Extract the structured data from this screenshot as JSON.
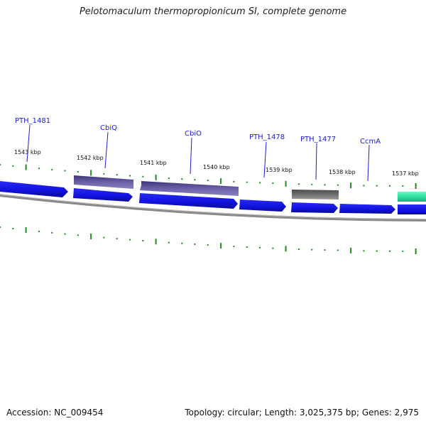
{
  "title": "Pelotomaculum thermopropionicum SI, complete genome",
  "footer": {
    "accession": "Accession: NC_009454",
    "summary": "Topology: circular; Length: 3,025,375 bp; Genes: 2,975"
  },
  "colors": {
    "strand_blue": "#1414e6",
    "strand_purple": "#5a4f94",
    "strand_gray": "#6a6a6a",
    "strand_teal": "#2fe0a0",
    "tick_green": "#1e8c1e",
    "label_blue": "#1a1ad6"
  },
  "scale_labels": [
    {
      "id": "1543",
      "text": "1543 kbp"
    },
    {
      "id": "1542",
      "text": "1542 kbp"
    },
    {
      "id": "1541",
      "text": "1541 kbp"
    },
    {
      "id": "1540",
      "text": "1540 kbp"
    },
    {
      "id": "1539",
      "text": "1539 kbp"
    },
    {
      "id": "1538",
      "text": "1538 kbp"
    },
    {
      "id": "1537",
      "text": "1537 kbp"
    }
  ],
  "gene_labels": [
    {
      "id": "pth1481",
      "text": "PTH_1481"
    },
    {
      "id": "cbiq",
      "text": "CbiQ"
    },
    {
      "id": "cbio",
      "text": "CbiO"
    },
    {
      "id": "pth1478",
      "text": "PTH_1478"
    },
    {
      "id": "pth1477",
      "text": "PTH_1477"
    },
    {
      "id": "ccma",
      "text": "CcmA"
    }
  ]
}
